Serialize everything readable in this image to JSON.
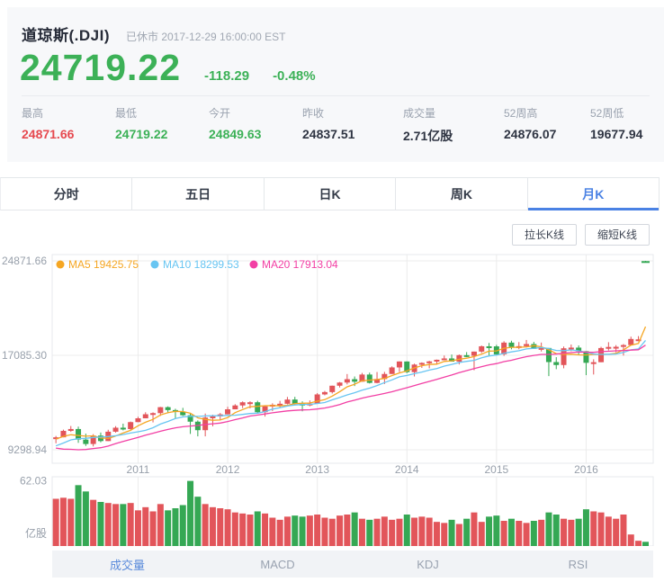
{
  "header": {
    "title": "道琼斯(.DJI)",
    "status": "已休市 2017-12-29 16:00:00 EST",
    "price": "24719.22",
    "change": "-118.29",
    "change_pct": "-0.48%",
    "stats": [
      {
        "label": "最高",
        "value": "24871.66",
        "color": "red"
      },
      {
        "label": "最低",
        "value": "24719.22",
        "color": "green"
      },
      {
        "label": "今开",
        "value": "24849.63",
        "color": "green"
      },
      {
        "label": "昨收",
        "value": "24837.51",
        "color": "dark"
      },
      {
        "label": "成交量",
        "value": "2.71亿股",
        "color": "dark"
      },
      {
        "label": "52周高",
        "value": "24876.07",
        "color": "dark"
      },
      {
        "label": "52周低",
        "value": "19677.94",
        "color": "dark"
      }
    ]
  },
  "period_tabs": {
    "items": [
      "分时",
      "五日",
      "日K",
      "周K",
      "月K"
    ],
    "active": 4
  },
  "actions": {
    "stretch": "拉长K线",
    "shrink": "缩短K线"
  },
  "indicator_tabs": {
    "items": [
      "成交量",
      "MACD",
      "KDJ",
      "RSI"
    ],
    "active": 0
  },
  "colors": {
    "up": "#e2555a",
    "down": "#35a854",
    "price_green": "#3cb157",
    "value_red": "#e6494f",
    "tab_blue": "#4a82e4",
    "axis_text": "#98a0ab",
    "grid": "#ececec"
  },
  "chart_data": {
    "type": "candlestick",
    "title": "道琼斯(.DJI) 月K",
    "legend": [
      {
        "name": "MA5",
        "value": "19425.75",
        "color": "#f5a623"
      },
      {
        "name": "MA10",
        "value": "18299.53",
        "color": "#68c5f2"
      },
      {
        "name": "MA20",
        "value": "17913.04",
        "color": "#f23fa4"
      }
    ],
    "ma_periods": [
      5,
      10,
      20
    ],
    "ma_seed": [
      10067,
      10428,
      10345,
      9713,
      9712,
      9496,
      9172,
      8447,
      8500,
      8168,
      7609,
      7063,
      8001,
      8776,
      8829,
      9325,
      10851,
      11378,
      12638
    ],
    "y_ticks": [
      24871.66,
      17085.3,
      9298.94
    ],
    "y_axis": {
      "max": 25390,
      "min": 8186
    },
    "x_ticks": [
      {
        "label": "2011",
        "index": 11
      },
      {
        "label": "2012",
        "index": 23
      },
      {
        "label": "2013",
        "index": 35
      },
      {
        "label": "2014",
        "index": 47
      },
      {
        "label": "2015",
        "index": 59
      },
      {
        "label": "2016",
        "index": 71
      }
    ],
    "volume_axis": {
      "tick": 62.03,
      "max": 66,
      "unit": "亿股"
    },
    "candles": [
      [
        "2010-02",
        10185,
        10438,
        9835,
        10325,
        45
      ],
      [
        "2010-03",
        10325,
        10955,
        10325,
        10857,
        46
      ],
      [
        "2010-04",
        10857,
        11258,
        10772,
        11009,
        45
      ],
      [
        "2010-05",
        11009,
        11205,
        9869,
        10137,
        58
      ],
      [
        "2010-06",
        10137,
        10626,
        9614,
        9774,
        52
      ],
      [
        "2010-07",
        9774,
        10585,
        9572,
        10466,
        44
      ],
      [
        "2010-08",
        10466,
        10720,
        9910,
        10015,
        42
      ],
      [
        "2010-09",
        10015,
        10948,
        10015,
        10788,
        41
      ],
      [
        "2010-10",
        10788,
        11247,
        10711,
        11118,
        40
      ],
      [
        "2010-11",
        11118,
        11451,
        10892,
        11006,
        40
      ],
      [
        "2010-12",
        11006,
        11625,
        10938,
        11578,
        41
      ],
      [
        "2011-01",
        11578,
        12020,
        11573,
        11892,
        34
      ],
      [
        "2011-02",
        11892,
        12391,
        11892,
        12226,
        37
      ],
      [
        "2011-03",
        12226,
        12383,
        11555,
        12320,
        33
      ],
      [
        "2011-04",
        12320,
        12832,
        12094,
        12811,
        40
      ],
      [
        "2011-05",
        12811,
        12876,
        12309,
        12570,
        34
      ],
      [
        "2011-06",
        12570,
        12679,
        11863,
        12414,
        36
      ],
      [
        "2011-07",
        12414,
        12753,
        12083,
        12143,
        39
      ],
      [
        "2011-08",
        12143,
        12283,
        10604,
        11614,
        62.03
      ],
      [
        "2011-09",
        11614,
        11717,
        10404,
        10913,
        47
      ],
      [
        "2011-10",
        10913,
        12284,
        10404,
        11955,
        40
      ],
      [
        "2011-11",
        11955,
        12187,
        11231,
        12046,
        37
      ],
      [
        "2011-12",
        12046,
        12328,
        11735,
        12218,
        36
      ],
      [
        "2012-01",
        12218,
        12842,
        12218,
        12633,
        35
      ],
      [
        "2012-02",
        12633,
        13055,
        12633,
        12952,
        32
      ],
      [
        "2012-03",
        12952,
        13289,
        12734,
        13212,
        31
      ],
      [
        "2012-04",
        13212,
        13297,
        12710,
        13214,
        30
      ],
      [
        "2012-05",
        13214,
        13338,
        12311,
        12393,
        33
      ],
      [
        "2012-06",
        12393,
        12899,
        12035,
        12880,
        31
      ],
      [
        "2012-07",
        12880,
        13128,
        12492,
        13009,
        27
      ],
      [
        "2012-08",
        13009,
        13330,
        12779,
        13091,
        25
      ],
      [
        "2012-09",
        13091,
        13653,
        13040,
        13437,
        28
      ],
      [
        "2012-10",
        13437,
        13661,
        13040,
        13096,
        29
      ],
      [
        "2012-11",
        13096,
        13290,
        12471,
        13026,
        28
      ],
      [
        "2012-12",
        13026,
        13365,
        12883,
        13104,
        29
      ],
      [
        "2013-01",
        13104,
        13969,
        13104,
        13861,
        30
      ],
      [
        "2013-02",
        13861,
        14149,
        13784,
        14054,
        27
      ],
      [
        "2013-03",
        14054,
        14585,
        13937,
        14579,
        26
      ],
      [
        "2013-04",
        14579,
        14887,
        14434,
        14840,
        29
      ],
      [
        "2013-05",
        14840,
        15542,
        14688,
        15116,
        30
      ],
      [
        "2013-06",
        15116,
        15340,
        14551,
        14910,
        32
      ],
      [
        "2013-07",
        14910,
        15634,
        14910,
        15500,
        26
      ],
      [
        "2013-08",
        15500,
        15658,
        14760,
        14810,
        25
      ],
      [
        "2013-09",
        14810,
        15709,
        14777,
        15130,
        26
      ],
      [
        "2013-10",
        15130,
        15721,
        14719,
        15546,
        28
      ],
      [
        "2013-11",
        15546,
        16174,
        15546,
        16086,
        25
      ],
      [
        "2013-12",
        16086,
        16588,
        15703,
        16577,
        26
      ],
      [
        "2014-01",
        16577,
        16588,
        15618,
        15699,
        30
      ],
      [
        "2014-02",
        15699,
        16398,
        15340,
        16322,
        27
      ],
      [
        "2014-03",
        16322,
        16505,
        16046,
        16458,
        28
      ],
      [
        "2014-04",
        16458,
        16631,
        16015,
        16581,
        27
      ],
      [
        "2014-05",
        16581,
        16735,
        16341,
        16717,
        23
      ],
      [
        "2014-06",
        16717,
        17068,
        16674,
        16827,
        22
      ],
      [
        "2014-07",
        16827,
        17151,
        16563,
        16563,
        25
      ],
      [
        "2014-08",
        16563,
        17153,
        16333,
        17098,
        21
      ],
      [
        "2014-09",
        17098,
        17350,
        16934,
        17043,
        26
      ],
      [
        "2014-10",
        17043,
        17395,
        15855,
        17391,
        32
      ],
      [
        "2014-11",
        17391,
        17894,
        17276,
        17828,
        23
      ],
      [
        "2014-12",
        17828,
        18103,
        17067,
        17823,
        28
      ],
      [
        "2015-01",
        17823,
        17951,
        17136,
        17165,
        29
      ],
      [
        "2015-02",
        17165,
        18244,
        17037,
        18133,
        24
      ],
      [
        "2015-03",
        18133,
        18288,
        17579,
        17776,
        26
      ],
      [
        "2015-04",
        17776,
        18176,
        17585,
        17841,
        24
      ],
      [
        "2015-05",
        17841,
        18351,
        17733,
        18011,
        22
      ],
      [
        "2015-06",
        18011,
        18188,
        17610,
        17620,
        24
      ],
      [
        "2015-07",
        17620,
        18137,
        17399,
        17690,
        25
      ],
      [
        "2015-08",
        17690,
        17690,
        15370,
        16528,
        32
      ],
      [
        "2015-09",
        16528,
        16933,
        15942,
        16285,
        30
      ],
      [
        "2015-10",
        16285,
        17810,
        16013,
        17664,
        26
      ],
      [
        "2015-11",
        17664,
        17977,
        17425,
        17720,
        25
      ],
      [
        "2015-12",
        17720,
        17902,
        17128,
        17425,
        26
      ],
      [
        "2016-01",
        17425,
        17425,
        15450,
        16466,
        35
      ],
      [
        "2016-02",
        16466,
        16757,
        15503,
        16517,
        33
      ],
      [
        "2016-03",
        16517,
        17790,
        16517,
        17685,
        32
      ],
      [
        "2016-04",
        17685,
        18168,
        17484,
        17774,
        28
      ],
      [
        "2016-05",
        17774,
        17928,
        17331,
        17787,
        26
      ],
      [
        "2016-06",
        17787,
        18016,
        17063,
        17930,
        30
      ],
      [
        "2016-07",
        17930,
        18622,
        17930,
        18432,
        11
      ],
      [
        "2016-08",
        18308,
        18668,
        18247,
        18401,
        5
      ]
    ],
    "current_candle": [
      "2017-12",
      24849.63,
      24871.66,
      24719.22,
      24719.22,
      4
    ]
  }
}
